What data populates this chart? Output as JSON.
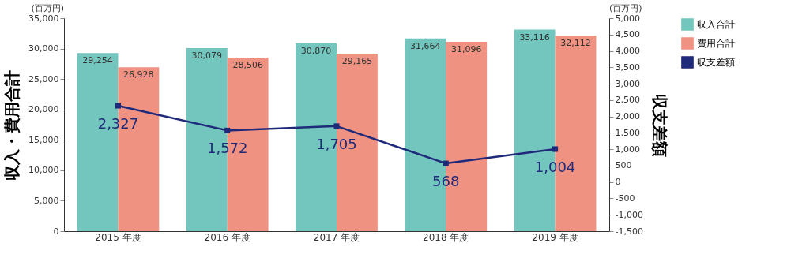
{
  "chart_data": {
    "type": "bar",
    "categories": [
      "2015 年度",
      "2016 年度",
      "2017 年度",
      "2018 年度",
      "2019 年度"
    ],
    "ylabel": "収入・費用合計",
    "y2label": "収支差額",
    "series": [
      {
        "name": "収入合計",
        "color": "#72c6bd",
        "values": [
          29254,
          30079,
          30870,
          31664,
          33116
        ],
        "value_labels": [
          "29,254",
          "30,079",
          "30,870",
          "31,664",
          "33,116"
        ]
      },
      {
        "name": "費用合計",
        "color": "#f09282",
        "values": [
          26928,
          28506,
          29165,
          31096,
          32112
        ],
        "value_labels": [
          "26,928",
          "28,506",
          "29,165",
          "31,096",
          "32,112"
        ]
      },
      {
        "name": "収支差額",
        "color": "#1f2a7a",
        "type": "line",
        "axis": "y2",
        "marker": "square",
        "values": [
          2327,
          1572,
          1705,
          568,
          1004
        ],
        "value_labels": [
          "2,327",
          "1,572",
          "1,705",
          "568",
          "1,004"
        ]
      }
    ],
    "ylim": [
      0,
      35000
    ],
    "yticks": [
      {
        "value": 0,
        "label": "0"
      },
      {
        "value": 5000,
        "label": "5,000"
      },
      {
        "value": 10000,
        "label": "10,000"
      },
      {
        "value": 15000,
        "label": "15,000"
      },
      {
        "value": 20000,
        "label": "20,000"
      },
      {
        "value": 25000,
        "label": "25,000"
      },
      {
        "value": 30000,
        "label": "30,000"
      },
      {
        "value": 35000,
        "label": "35,000"
      }
    ],
    "y2lim": [
      -1500,
      5000
    ],
    "y2ticks": [
      {
        "value": -1500,
        "label": "-1,500"
      },
      {
        "value": -1000,
        "label": "-1,000"
      },
      -500,
      0,
      500,
      {
        "value": 1000,
        "label": "1,000"
      },
      {
        "value": 1500,
        "label": "1,500"
      },
      {
        "value": 2000,
        "label": "2,000"
      },
      {
        "value": 2500,
        "label": "2,500"
      },
      {
        "value": 3000,
        "label": "3,000"
      },
      {
        "value": 3500,
        "label": "3,500"
      },
      {
        "value": 4000,
        "label": "4,000"
      },
      {
        "value": 4500,
        "label": "4,500"
      },
      {
        "value": 5000,
        "label": "5,000"
      }
    ],
    "annotations": [
      "(百万円)",
      "(百万円)"
    ],
    "legend": "right",
    "grid": false
  }
}
